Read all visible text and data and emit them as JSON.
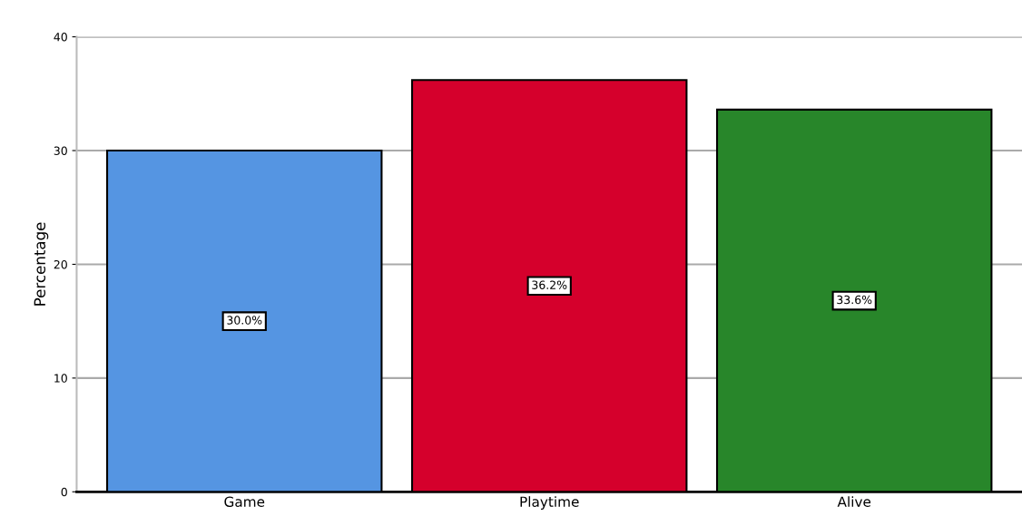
{
  "chart_data": {
    "type": "bar",
    "ylabel": "Percentage",
    "categories": [
      "Game",
      "Playtime",
      "Alive"
    ],
    "values": [
      30.0,
      36.2,
      33.6
    ],
    "colors": [
      "#5595e2",
      "#d5002c",
      "#28862a"
    ],
    "value_labels": [
      "30.0%",
      "36.2%",
      "33.6%"
    ],
    "ylim": [
      0,
      40
    ],
    "yticks": [
      0,
      10,
      20,
      30,
      40
    ],
    "grid": "y"
  }
}
